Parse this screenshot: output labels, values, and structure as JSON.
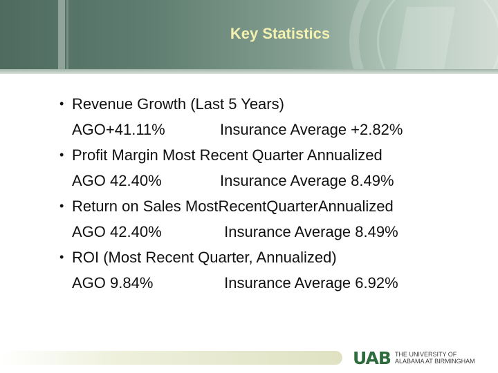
{
  "slide": {
    "title": "Key Statistics",
    "bullets": [
      {
        "line1": "Revenue Growth (Last 5 Years)",
        "left": "AGO+41.11%",
        "right": "Insurance Average +2.82%"
      },
      {
        "line1": "Profit Margin Most Recent Quarter Annualized",
        "left": "AGO 42.40%",
        "right": "Insurance Average 8.49%"
      },
      {
        "line1": "Return on Sales MostRecentQuarterAnnualized",
        "left": "AGO 42.40%",
        "right": " Insurance Average 8.49%"
      },
      {
        "line1": "ROI (Most Recent Quarter, Annualized)",
        "left": "AGO 9.84%",
        "right": " Insurance Average 6.92%"
      }
    ]
  },
  "footer": {
    "logo_mark": "UAB",
    "logo_line1": "THE UNIVERSITY OF",
    "logo_line2": "ALABAMA AT BIRMINGHAM"
  }
}
